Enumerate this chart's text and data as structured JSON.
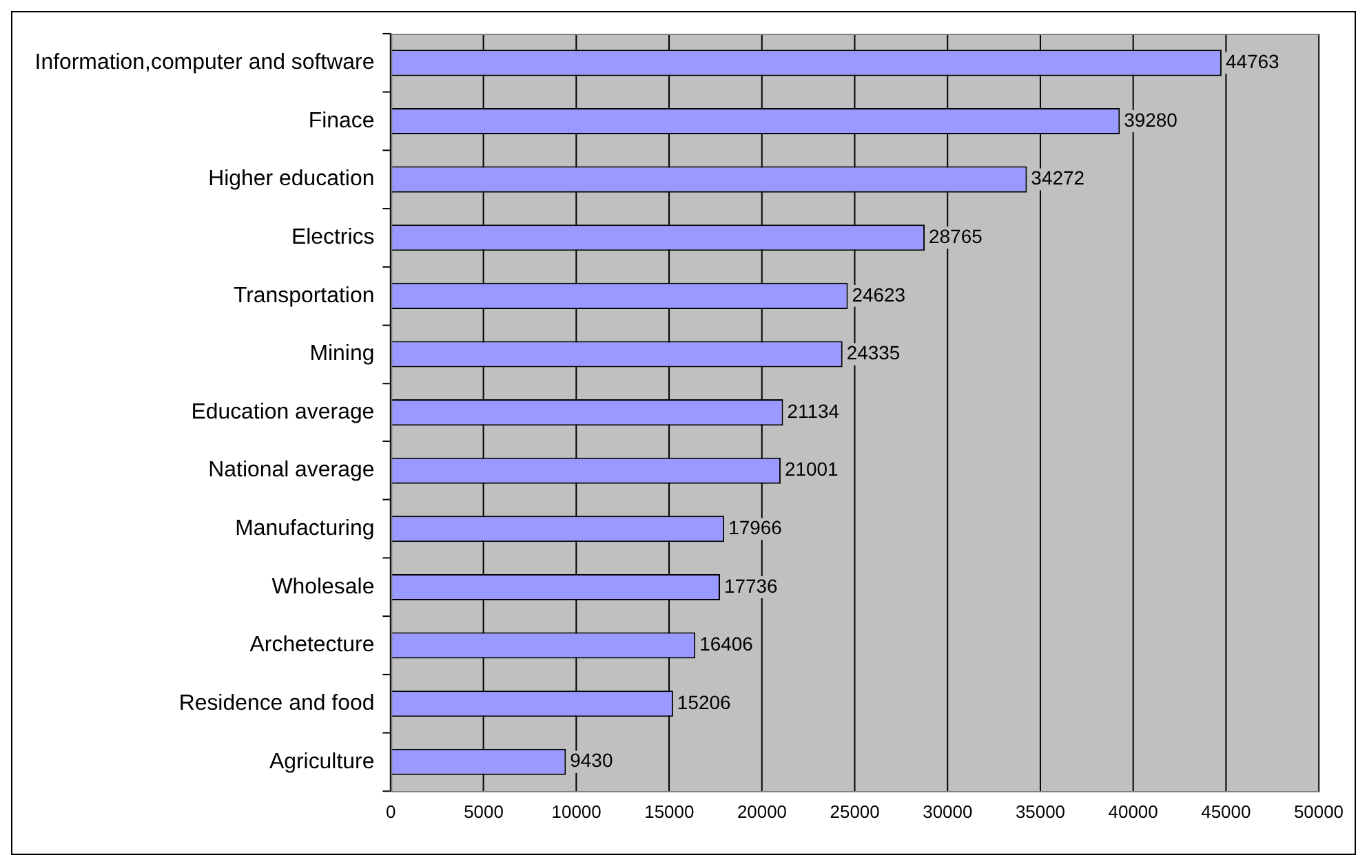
{
  "chart_data": {
    "type": "bar",
    "orientation": "horizontal",
    "categories": [
      "Information,computer and software",
      "Finace",
      "Higher education",
      "Electrics",
      "Transportation",
      "Mining",
      "Education average",
      "National average",
      "Manufacturing",
      "Wholesale",
      "Archetecture",
      "Residence and food",
      "Agriculture"
    ],
    "values": [
      44763,
      39280,
      34272,
      28765,
      24623,
      24335,
      21134,
      21001,
      17966,
      17736,
      16406,
      15206,
      9430
    ],
    "color": "#9999ff",
    "xlim": [
      0,
      50000
    ],
    "xticks": [
      0,
      5000,
      10000,
      15000,
      20000,
      25000,
      30000,
      35000,
      40000,
      45000,
      50000
    ],
    "grid": "x",
    "data_labels": true
  }
}
